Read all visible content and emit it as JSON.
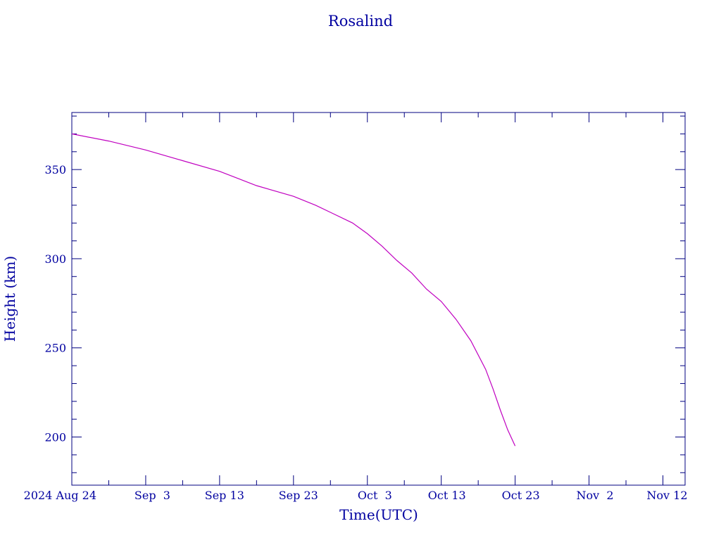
{
  "chart_data": {
    "type": "line",
    "title": "Rosalind",
    "xlabel": "Time(UTC)",
    "ylabel": "Height (km)",
    "x_tick_labels": [
      "2024 Aug 24",
      "Sep  3",
      "Sep 13",
      "Sep 23",
      "Oct  3",
      "Oct 13",
      "Oct 23",
      "Nov  2",
      "Nov 12"
    ],
    "y_ticks": [
      200,
      250,
      300,
      350
    ],
    "ylim": [
      173,
      382
    ],
    "xlim": [
      "2024-08-24",
      "2024-11-15"
    ],
    "grid": false,
    "legend": "none",
    "colors": {
      "axis": "#000080",
      "text": "#0000a0",
      "series": "#c000c0"
    },
    "series": [
      {
        "x": [
          "2024-08-24",
          "2024-08-29",
          "2024-09-03",
          "2024-09-08",
          "2024-09-13",
          "2024-09-18",
          "2024-09-23",
          "2024-09-26",
          "2024-09-28",
          "2024-10-01",
          "2024-10-03",
          "2024-10-05",
          "2024-10-07",
          "2024-10-09",
          "2024-10-11",
          "2024-10-13",
          "2024-10-15",
          "2024-10-17",
          "2024-10-19",
          "2024-10-20",
          "2024-10-21",
          "2024-10-22",
          "2024-10-23"
        ],
        "y": [
          370,
          366,
          361,
          355,
          349,
          341,
          335,
          330,
          326,
          320,
          314,
          307,
          299,
          292,
          283,
          276,
          266,
          254,
          238,
          227,
          215,
          204,
          195
        ]
      }
    ]
  }
}
